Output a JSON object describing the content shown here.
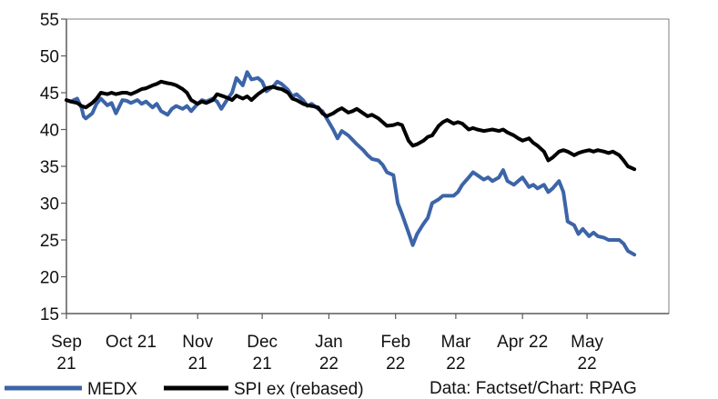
{
  "chart_data": {
    "type": "line",
    "title": "",
    "xlabel": "",
    "ylabel": "",
    "ylim": [
      15,
      55
    ],
    "yticks": [
      15,
      20,
      25,
      30,
      35,
      40,
      45,
      50,
      55
    ],
    "xlim": [
      "2021-09-01",
      "2022-05-31"
    ],
    "xticks": [
      {
        "date": "2021-09-01",
        "line1": "Sep",
        "line2": "21"
      },
      {
        "date": "2021-10-01",
        "line1": "Oct 21",
        "line2": ""
      },
      {
        "date": "2021-11-01",
        "line1": "Nov",
        "line2": "21"
      },
      {
        "date": "2021-12-01",
        "line1": "Dec",
        "line2": "21"
      },
      {
        "date": "2022-01-01",
        "line1": "Jan",
        "line2": "22"
      },
      {
        "date": "2022-02-01",
        "line1": "Feb",
        "line2": "22"
      },
      {
        "date": "2022-03-01",
        "line1": "Mar",
        "line2": "22"
      },
      {
        "date": "2022-04-01",
        "line1": "Apr 22",
        "line2": ""
      },
      {
        "date": "2022-05-01",
        "line1": "May",
        "line2": "22"
      }
    ],
    "grid": false,
    "legend_position": "bottom",
    "source_note": "Data: Factset/Chart: RPAG",
    "series": [
      {
        "name": "MEDX",
        "color": "#3c64a8",
        "points": [
          [
            "2021-09-01",
            44.0
          ],
          [
            "2021-09-03",
            43.8
          ],
          [
            "2021-09-06",
            44.2
          ],
          [
            "2021-09-08",
            43.0
          ],
          [
            "2021-09-09",
            41.8
          ],
          [
            "2021-09-10",
            41.5
          ],
          [
            "2021-09-13",
            42.2
          ],
          [
            "2021-09-15",
            43.5
          ],
          [
            "2021-09-17",
            44.2
          ],
          [
            "2021-09-20",
            43.3
          ],
          [
            "2021-09-22",
            43.6
          ],
          [
            "2021-09-24",
            42.2
          ],
          [
            "2021-09-27",
            44.0
          ],
          [
            "2021-09-29",
            43.9
          ],
          [
            "2021-10-01",
            43.6
          ],
          [
            "2021-10-04",
            44.0
          ],
          [
            "2021-10-06",
            43.5
          ],
          [
            "2021-10-08",
            43.8
          ],
          [
            "2021-10-11",
            43.0
          ],
          [
            "2021-10-13",
            43.5
          ],
          [
            "2021-10-15",
            42.5
          ],
          [
            "2021-10-18",
            42.0
          ],
          [
            "2021-10-20",
            42.8
          ],
          [
            "2021-10-22",
            43.2
          ],
          [
            "2021-10-25",
            42.8
          ],
          [
            "2021-10-27",
            43.2
          ],
          [
            "2021-10-29",
            42.5
          ],
          [
            "2021-11-01",
            43.5
          ],
          [
            "2021-11-03",
            44.0
          ],
          [
            "2021-11-05",
            43.8
          ],
          [
            "2021-11-08",
            44.2
          ],
          [
            "2021-11-10",
            43.8
          ],
          [
            "2021-11-12",
            42.8
          ],
          [
            "2021-11-15",
            44.2
          ],
          [
            "2021-11-17",
            45.0
          ],
          [
            "2021-11-19",
            47.0
          ],
          [
            "2021-11-22",
            46.0
          ],
          [
            "2021-11-24",
            47.8
          ],
          [
            "2021-11-26",
            46.8
          ],
          [
            "2021-11-29",
            47.0
          ],
          [
            "2021-12-01",
            46.5
          ],
          [
            "2021-12-03",
            45.2
          ],
          [
            "2021-12-06",
            45.8
          ],
          [
            "2021-12-08",
            46.5
          ],
          [
            "2021-12-10",
            46.2
          ],
          [
            "2021-12-13",
            45.4
          ],
          [
            "2021-12-15",
            44.5
          ],
          [
            "2021-12-17",
            44.8
          ],
          [
            "2021-12-20",
            44.0
          ],
          [
            "2021-12-22",
            43.2
          ],
          [
            "2021-12-24",
            43.5
          ],
          [
            "2021-12-27",
            42.8
          ],
          [
            "2021-12-29",
            42.5
          ],
          [
            "2021-12-31",
            41.5
          ],
          [
            "2022-01-03",
            40.0
          ],
          [
            "2022-01-05",
            38.8
          ],
          [
            "2022-01-07",
            39.8
          ],
          [
            "2022-01-10",
            39.2
          ],
          [
            "2022-01-12",
            38.6
          ],
          [
            "2022-01-14",
            38.0
          ],
          [
            "2022-01-17",
            37.2
          ],
          [
            "2022-01-19",
            36.5
          ],
          [
            "2022-01-21",
            36.0
          ],
          [
            "2022-01-24",
            35.8
          ],
          [
            "2022-01-26",
            35.2
          ],
          [
            "2022-01-28",
            34.2
          ],
          [
            "2022-01-31",
            33.8
          ],
          [
            "2022-02-02",
            30.0
          ],
          [
            "2022-02-04",
            28.5
          ],
          [
            "2022-02-07",
            26.0
          ],
          [
            "2022-02-09",
            24.3
          ],
          [
            "2022-02-11",
            25.8
          ],
          [
            "2022-02-14",
            27.2
          ],
          [
            "2022-02-16",
            28.0
          ],
          [
            "2022-02-18",
            30.0
          ],
          [
            "2022-02-21",
            30.5
          ],
          [
            "2022-02-23",
            31.0
          ],
          [
            "2022-02-25",
            31.0
          ],
          [
            "2022-02-28",
            31.0
          ],
          [
            "2022-03-02",
            31.5
          ],
          [
            "2022-03-04",
            32.5
          ],
          [
            "2022-03-07",
            33.5
          ],
          [
            "2022-03-09",
            34.2
          ],
          [
            "2022-03-11",
            33.8
          ],
          [
            "2022-03-14",
            33.2
          ],
          [
            "2022-03-16",
            33.5
          ],
          [
            "2022-03-18",
            33.0
          ],
          [
            "2022-03-21",
            33.5
          ],
          [
            "2022-03-23",
            34.5
          ],
          [
            "2022-03-25",
            33.0
          ],
          [
            "2022-03-28",
            32.5
          ],
          [
            "2022-03-30",
            33.0
          ],
          [
            "2022-04-01",
            33.5
          ],
          [
            "2022-04-04",
            32.2
          ],
          [
            "2022-04-06",
            32.5
          ],
          [
            "2022-04-08",
            32.0
          ],
          [
            "2022-04-11",
            32.5
          ],
          [
            "2022-04-13",
            31.5
          ],
          [
            "2022-04-15",
            32.0
          ],
          [
            "2022-04-18",
            33.0
          ],
          [
            "2022-04-20",
            31.5
          ],
          [
            "2022-04-22",
            27.5
          ],
          [
            "2022-04-25",
            27.0
          ],
          [
            "2022-04-27",
            25.8
          ],
          [
            "2022-04-29",
            26.5
          ],
          [
            "2022-05-02",
            25.5
          ],
          [
            "2022-05-04",
            26.0
          ],
          [
            "2022-05-06",
            25.5
          ],
          [
            "2022-05-09",
            25.3
          ],
          [
            "2022-05-11",
            25.0
          ],
          [
            "2022-05-13",
            25.0
          ],
          [
            "2022-05-16",
            25.0
          ],
          [
            "2022-05-18",
            24.5
          ],
          [
            "2022-05-20",
            23.5
          ],
          [
            "2022-05-23",
            23.0
          ]
        ]
      },
      {
        "name": "SPI ex (rebased)",
        "color": "#000000",
        "points": [
          [
            "2021-09-01",
            44.0
          ],
          [
            "2021-09-03",
            43.8
          ],
          [
            "2021-09-06",
            43.6
          ],
          [
            "2021-09-08",
            43.2
          ],
          [
            "2021-09-10",
            43.0
          ],
          [
            "2021-09-13",
            43.6
          ],
          [
            "2021-09-15",
            44.2
          ],
          [
            "2021-09-17",
            45.0
          ],
          [
            "2021-09-20",
            44.8
          ],
          [
            "2021-09-22",
            45.0
          ],
          [
            "2021-09-24",
            44.8
          ],
          [
            "2021-09-27",
            45.0
          ],
          [
            "2021-09-29",
            45.0
          ],
          [
            "2021-10-01",
            44.8
          ],
          [
            "2021-10-04",
            45.2
          ],
          [
            "2021-10-06",
            45.5
          ],
          [
            "2021-10-08",
            45.6
          ],
          [
            "2021-10-11",
            46.0
          ],
          [
            "2021-10-13",
            46.2
          ],
          [
            "2021-10-15",
            46.5
          ],
          [
            "2021-10-18",
            46.3
          ],
          [
            "2021-10-20",
            46.2
          ],
          [
            "2021-10-22",
            46.0
          ],
          [
            "2021-10-25",
            45.5
          ],
          [
            "2021-10-27",
            45.0
          ],
          [
            "2021-10-29",
            44.0
          ],
          [
            "2021-11-01",
            43.5
          ],
          [
            "2021-11-03",
            43.8
          ],
          [
            "2021-11-05",
            43.6
          ],
          [
            "2021-11-08",
            44.0
          ],
          [
            "2021-11-10",
            44.8
          ],
          [
            "2021-11-12",
            44.6
          ],
          [
            "2021-11-15",
            44.3
          ],
          [
            "2021-11-17",
            44.0
          ],
          [
            "2021-11-19",
            44.6
          ],
          [
            "2021-11-22",
            44.2
          ],
          [
            "2021-11-24",
            44.5
          ],
          [
            "2021-11-26",
            44.0
          ],
          [
            "2021-11-29",
            44.8
          ],
          [
            "2021-12-01",
            45.2
          ],
          [
            "2021-12-03",
            45.6
          ],
          [
            "2021-12-06",
            45.8
          ],
          [
            "2021-12-08",
            45.6
          ],
          [
            "2021-12-10",
            45.5
          ],
          [
            "2021-12-13",
            45.0
          ],
          [
            "2021-12-15",
            44.2
          ],
          [
            "2021-12-17",
            44.0
          ],
          [
            "2021-12-20",
            43.5
          ],
          [
            "2021-12-22",
            43.3
          ],
          [
            "2021-12-24",
            43.2
          ],
          [
            "2021-12-27",
            43.0
          ],
          [
            "2021-12-29",
            42.2
          ],
          [
            "2021-12-31",
            41.8
          ],
          [
            "2022-01-03",
            42.2
          ],
          [
            "2022-01-05",
            42.6
          ],
          [
            "2022-01-07",
            42.9
          ],
          [
            "2022-01-10",
            42.3
          ],
          [
            "2022-01-12",
            42.5
          ],
          [
            "2022-01-14",
            42.8
          ],
          [
            "2022-01-17",
            42.2
          ],
          [
            "2022-01-19",
            41.8
          ],
          [
            "2022-01-21",
            42.0
          ],
          [
            "2022-01-24",
            41.5
          ],
          [
            "2022-01-26",
            41.0
          ],
          [
            "2022-01-28",
            40.5
          ],
          [
            "2022-01-31",
            40.6
          ],
          [
            "2022-02-02",
            40.8
          ],
          [
            "2022-02-04",
            40.6
          ],
          [
            "2022-02-07",
            38.5
          ],
          [
            "2022-02-09",
            37.8
          ],
          [
            "2022-02-11",
            38.0
          ],
          [
            "2022-02-14",
            38.5
          ],
          [
            "2022-02-16",
            39.0
          ],
          [
            "2022-02-18",
            39.2
          ],
          [
            "2022-02-21",
            40.5
          ],
          [
            "2022-02-23",
            41.0
          ],
          [
            "2022-02-25",
            41.3
          ],
          [
            "2022-02-28",
            40.8
          ],
          [
            "2022-03-02",
            41.0
          ],
          [
            "2022-03-04",
            40.8
          ],
          [
            "2022-03-07",
            40.0
          ],
          [
            "2022-03-09",
            40.2
          ],
          [
            "2022-03-11",
            40.0
          ],
          [
            "2022-03-14",
            39.8
          ],
          [
            "2022-03-16",
            39.9
          ],
          [
            "2022-03-18",
            40.0
          ],
          [
            "2022-03-21",
            39.8
          ],
          [
            "2022-03-23",
            40.0
          ],
          [
            "2022-03-25",
            39.6
          ],
          [
            "2022-03-28",
            39.2
          ],
          [
            "2022-03-30",
            38.8
          ],
          [
            "2022-04-01",
            38.5
          ],
          [
            "2022-04-04",
            38.8
          ],
          [
            "2022-04-06",
            38.2
          ],
          [
            "2022-04-08",
            37.8
          ],
          [
            "2022-04-11",
            37.0
          ],
          [
            "2022-04-13",
            35.8
          ],
          [
            "2022-04-15",
            36.2
          ],
          [
            "2022-04-18",
            37.0
          ],
          [
            "2022-04-20",
            37.2
          ],
          [
            "2022-04-22",
            37.0
          ],
          [
            "2022-04-25",
            36.5
          ],
          [
            "2022-04-27",
            36.8
          ],
          [
            "2022-04-29",
            37.0
          ],
          [
            "2022-05-02",
            37.2
          ],
          [
            "2022-05-04",
            37.0
          ],
          [
            "2022-05-06",
            37.2
          ],
          [
            "2022-05-09",
            37.0
          ],
          [
            "2022-05-11",
            36.8
          ],
          [
            "2022-05-13",
            37.0
          ],
          [
            "2022-05-16",
            36.5
          ],
          [
            "2022-05-18",
            35.8
          ],
          [
            "2022-05-20",
            35.0
          ],
          [
            "2022-05-23",
            34.6
          ]
        ]
      }
    ]
  }
}
